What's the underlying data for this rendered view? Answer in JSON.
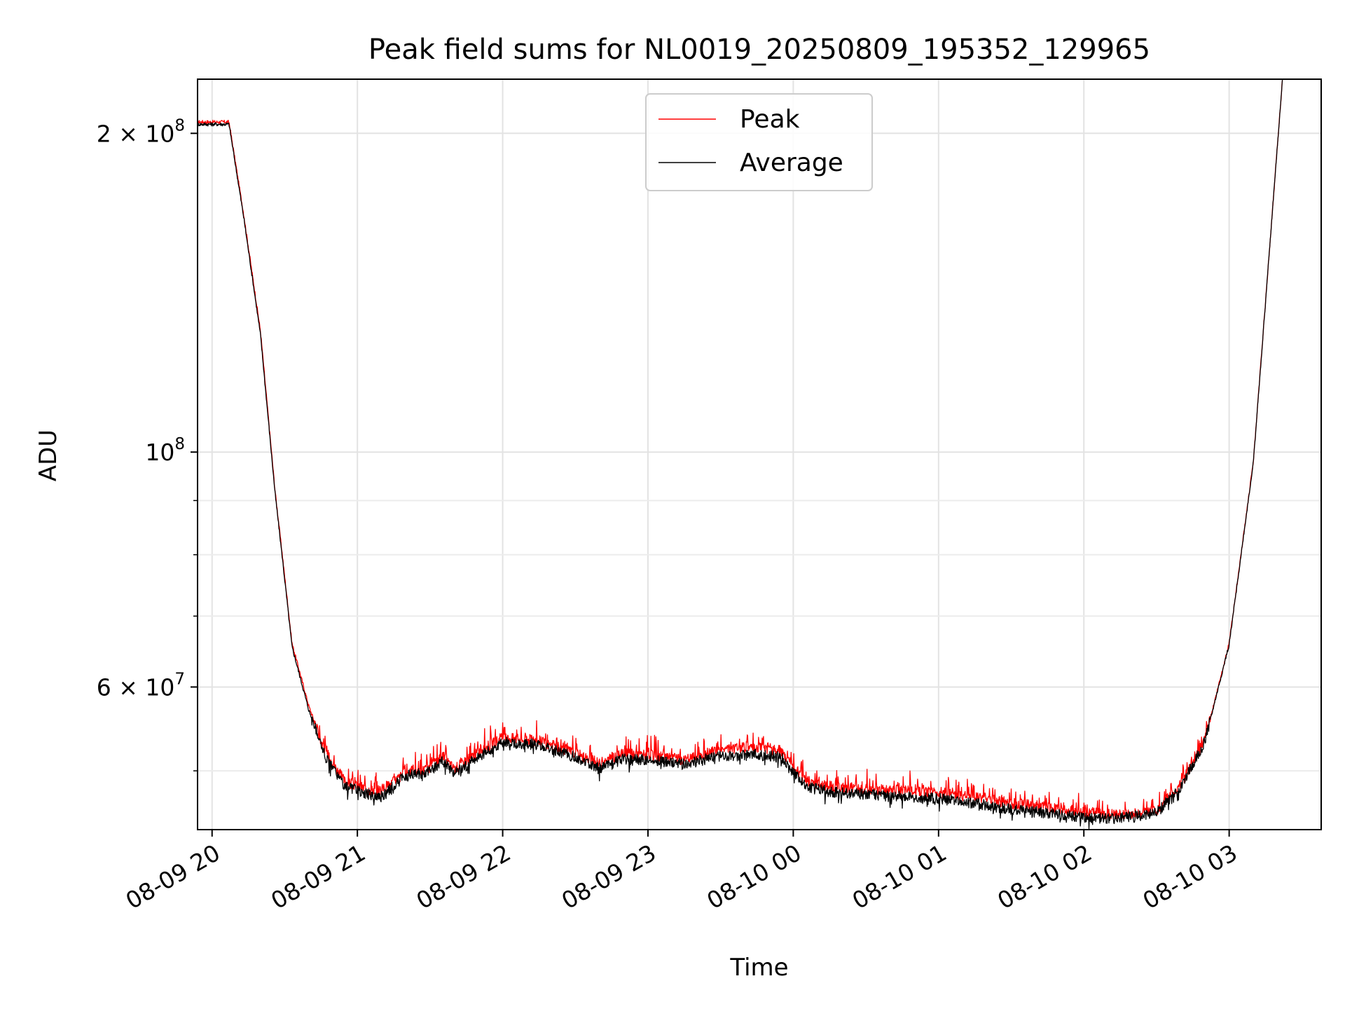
{
  "chart_data": {
    "type": "line",
    "title": "Peak field sums for NL0019_20250809_195352_129965",
    "xlabel": "Time",
    "ylabel": "ADU",
    "y_scale": "log",
    "ylim": [
      44000000,
      225000000
    ],
    "xlim": [
      "2025-08-09 19:54",
      "2025-08-10 03:38"
    ],
    "grid": true,
    "legend": "upper center",
    "x_ticks": [
      {
        "t": "2025-08-09 20:00",
        "label": "08-09 20"
      },
      {
        "t": "2025-08-09 21:00",
        "label": "08-09 21"
      },
      {
        "t": "2025-08-09 22:00",
        "label": "08-09 22"
      },
      {
        "t": "2025-08-09 23:00",
        "label": "08-09 23"
      },
      {
        "t": "2025-08-10 00:00",
        "label": "08-10 00"
      },
      {
        "t": "2025-08-10 01:00",
        "label": "08-10 01"
      },
      {
        "t": "2025-08-10 02:00",
        "label": "08-10 02"
      },
      {
        "t": "2025-08-10 03:00",
        "label": "08-10 03"
      }
    ],
    "y_ticks": [
      {
        "value": 200000000,
        "base": "2 × 10",
        "exp": "8"
      },
      {
        "value": 100000000,
        "base": "10",
        "exp": "8"
      },
      {
        "value": 60000000,
        "base": "6 × 10",
        "exp": "7"
      }
    ],
    "y_minor_ticks": [
      50000000,
      70000000,
      80000000,
      90000000
    ],
    "series": [
      {
        "name": "Peak",
        "color": "#ff0000",
        "x": [
          "2025-08-09 19:54",
          "2025-08-09 20:07",
          "2025-08-09 20:13",
          "2025-08-09 20:20",
          "2025-08-09 20:26",
          "2025-08-09 20:29",
          "2025-08-09 20:33",
          "2025-08-09 20:40",
          "2025-08-09 20:47",
          "2025-08-09 20:55",
          "2025-08-09 21:05",
          "2025-08-09 21:10",
          "2025-08-09 21:20",
          "2025-08-09 21:30",
          "2025-08-09 21:35",
          "2025-08-09 21:40",
          "2025-08-09 21:45",
          "2025-08-09 22:00",
          "2025-08-09 22:15",
          "2025-08-09 22:30",
          "2025-08-09 22:40",
          "2025-08-09 22:50",
          "2025-08-09 23:00",
          "2025-08-09 23:15",
          "2025-08-09 23:30",
          "2025-08-09 23:45",
          "2025-08-09 23:55",
          "2025-08-10 00:05",
          "2025-08-10 00:15",
          "2025-08-10 00:30",
          "2025-08-10 00:45",
          "2025-08-10 01:00",
          "2025-08-10 01:15",
          "2025-08-10 01:30",
          "2025-08-10 01:45",
          "2025-08-10 02:00",
          "2025-08-10 02:15",
          "2025-08-10 02:30",
          "2025-08-10 02:40",
          "2025-08-10 02:50",
          "2025-08-10 03:00",
          "2025-08-10 03:10",
          "2025-08-10 03:22"
        ],
        "y": [
          205000000,
          205000000,
          168000000,
          130000000,
          92000000,
          80000000,
          66000000,
          57500000,
          52000000,
          48800000,
          48000000,
          48000000,
          49800000,
          50200000,
          51700000,
          50200000,
          51200000,
          53800000,
          53300000,
          52000000,
          50800000,
          51900000,
          51800000,
          51200000,
          52400000,
          52700000,
          52200000,
          48900000,
          48300000,
          48000000,
          47900000,
          47700000,
          47200000,
          46600000,
          46200000,
          45700000,
          45400000,
          45900000,
          48500000,
          53500000,
          66000000,
          98000000,
          225000000
        ]
      },
      {
        "name": "Average",
        "color": "#000000",
        "x": [
          "2025-08-09 19:54",
          "2025-08-09 20:07",
          "2025-08-09 20:13",
          "2025-08-09 20:20",
          "2025-08-09 20:26",
          "2025-08-09 20:29",
          "2025-08-09 20:33",
          "2025-08-09 20:40",
          "2025-08-09 20:47",
          "2025-08-09 20:55",
          "2025-08-09 21:05",
          "2025-08-09 21:10",
          "2025-08-09 21:20",
          "2025-08-09 21:30",
          "2025-08-09 21:35",
          "2025-08-09 21:40",
          "2025-08-09 21:45",
          "2025-08-09 22:00",
          "2025-08-09 22:15",
          "2025-08-09 22:30",
          "2025-08-09 22:40",
          "2025-08-09 22:50",
          "2025-08-09 23:00",
          "2025-08-09 23:15",
          "2025-08-09 23:30",
          "2025-08-09 23:45",
          "2025-08-09 23:55",
          "2025-08-10 00:05",
          "2025-08-10 00:15",
          "2025-08-10 00:30",
          "2025-08-10 00:45",
          "2025-08-10 01:00",
          "2025-08-10 01:15",
          "2025-08-10 01:30",
          "2025-08-10 01:45",
          "2025-08-10 02:00",
          "2025-08-10 02:15",
          "2025-08-10 02:30",
          "2025-08-10 02:40",
          "2025-08-10 02:50",
          "2025-08-10 03:00",
          "2025-08-10 03:10",
          "2025-08-10 03:22"
        ],
        "y": [
          204000000,
          204000000,
          167000000,
          129000000,
          91500000,
          79500000,
          65500000,
          57000000,
          51500000,
          48300000,
          47500000,
          47300000,
          49500000,
          49900000,
          51200000,
          49800000,
          50600000,
          53300000,
          52900000,
          51500000,
          50300000,
          51300000,
          51200000,
          50800000,
          51600000,
          51800000,
          51500000,
          48400000,
          47800000,
          47500000,
          47300000,
          47100000,
          46600000,
          46000000,
          45600000,
          45100000,
          45100000,
          45600000,
          48300000,
          53300000,
          65800000,
          97800000,
          225000000
        ]
      }
    ]
  }
}
